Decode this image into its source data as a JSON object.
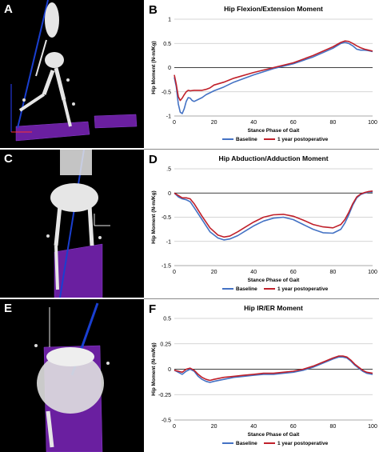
{
  "figure": {
    "image_panels": [
      {
        "letter": "A"
      },
      {
        "letter": "C"
      },
      {
        "letter": "E"
      }
    ]
  },
  "colors": {
    "baseline": "#4472c4",
    "postop": "#c0202a",
    "grid": "#c8c8c8",
    "skeleton": "#e6e6e6",
    "force_plate": "#6a1fa0",
    "force_vector": "#1a3fd0"
  },
  "chart_data": [
    {
      "letter": "B",
      "type": "line",
      "title": "Hip Flexion/Extension Moment",
      "xlabel": "Stance Phase of Gait",
      "ylabel": "Hip Moment (N-m/Kg)",
      "xlim": [
        0,
        100
      ],
      "ylim": [
        -1,
        1
      ],
      "xticks": [
        0,
        20,
        40,
        60,
        80,
        100
      ],
      "yticks": [
        1,
        0.5,
        0,
        -0.5,
        -1
      ],
      "ytick_labels": [
        "1",
        "0.5",
        "0",
        "-0.5",
        "-1"
      ],
      "grid": "horizontal",
      "legend_position": "bottom",
      "series": [
        {
          "name": "Baseline",
          "x": [
            0,
            1,
            2,
            3,
            4,
            5,
            6,
            7,
            8,
            9,
            10,
            12,
            14,
            16,
            18,
            20,
            25,
            30,
            40,
            50,
            60,
            70,
            80,
            84,
            86,
            88,
            90,
            92,
            94,
            96,
            98,
            100
          ],
          "y": [
            -0.2,
            -0.4,
            -0.75,
            -0.92,
            -0.95,
            -0.85,
            -0.7,
            -0.62,
            -0.63,
            -0.68,
            -0.7,
            -0.66,
            -0.62,
            -0.56,
            -0.52,
            -0.48,
            -0.4,
            -0.3,
            -0.15,
            -0.02,
            0.08,
            0.22,
            0.4,
            0.5,
            0.52,
            0.5,
            0.45,
            0.38,
            0.36,
            0.36,
            0.35,
            0.33
          ]
        },
        {
          "name": "1 year postoperative",
          "x": [
            0,
            1,
            2,
            3,
            4,
            5,
            6,
            7,
            8,
            10,
            12,
            14,
            16,
            18,
            20,
            25,
            30,
            40,
            50,
            60,
            70,
            80,
            84,
            86,
            88,
            90,
            92,
            94,
            96,
            98,
            100
          ],
          "y": [
            -0.15,
            -0.35,
            -0.6,
            -0.68,
            -0.63,
            -0.56,
            -0.5,
            -0.47,
            -0.48,
            -0.47,
            -0.47,
            -0.47,
            -0.45,
            -0.42,
            -0.36,
            -0.3,
            -0.22,
            -0.1,
            0.0,
            0.1,
            0.25,
            0.43,
            0.52,
            0.55,
            0.54,
            0.5,
            0.45,
            0.41,
            0.38,
            0.36,
            0.34
          ]
        }
      ]
    },
    {
      "letter": "D",
      "type": "line",
      "title": "Hip Abduction/Adduction Moment",
      "xlabel": "Stance Phase of Gait",
      "ylabel": "Hip Moment (N-m/Kg)",
      "xlim": [
        0,
        100
      ],
      "ylim": [
        -1.5,
        0.5
      ],
      "xticks": [
        0,
        20,
        40,
        60,
        80,
        100
      ],
      "yticks": [
        0.5,
        0,
        -0.5,
        -1,
        -1.5
      ],
      "ytick_labels": [
        ".5",
        "0",
        "-0.5",
        "-1",
        "-1.5"
      ],
      "grid": "horizontal",
      "legend_position": "bottom",
      "series": [
        {
          "name": "Baseline",
          "x": [
            0,
            2,
            4,
            6,
            8,
            10,
            14,
            18,
            22,
            25,
            28,
            32,
            36,
            40,
            45,
            50,
            55,
            60,
            65,
            70,
            75,
            80,
            84,
            86,
            88,
            90,
            92,
            94,
            96,
            98,
            100
          ],
          "y": [
            0,
            -0.08,
            -0.12,
            -0.14,
            -0.18,
            -0.3,
            -0.55,
            -0.8,
            -0.93,
            -0.97,
            -0.95,
            -0.88,
            -0.78,
            -0.68,
            -0.58,
            -0.52,
            -0.5,
            -0.55,
            -0.65,
            -0.75,
            -0.82,
            -0.83,
            -0.75,
            -0.62,
            -0.45,
            -0.25,
            -0.1,
            -0.03,
            0.0,
            0.02,
            0.02
          ]
        },
        {
          "name": "1 year postoperative",
          "x": [
            0,
            2,
            4,
            6,
            8,
            10,
            14,
            18,
            22,
            25,
            28,
            32,
            36,
            40,
            45,
            50,
            55,
            60,
            65,
            70,
            75,
            80,
            84,
            86,
            88,
            90,
            92,
            94,
            96,
            98,
            100
          ],
          "y": [
            0,
            -0.05,
            -0.1,
            -0.1,
            -0.12,
            -0.22,
            -0.48,
            -0.72,
            -0.87,
            -0.91,
            -0.89,
            -0.8,
            -0.7,
            -0.6,
            -0.5,
            -0.45,
            -0.44,
            -0.48,
            -0.56,
            -0.65,
            -0.7,
            -0.72,
            -0.65,
            -0.55,
            -0.4,
            -0.22,
            -0.08,
            -0.02,
            0.01,
            0.03,
            0.04
          ]
        }
      ]
    },
    {
      "letter": "F",
      "type": "line",
      "title": "Hip IR/ER Moment",
      "xlabel": "Stance Phase of Gait",
      "ylabel": "Hip Moment (N-m/Kg)",
      "xlim": [
        0,
        100
      ],
      "ylim": [
        -0.5,
        0.5
      ],
      "xticks": [
        0,
        20,
        40,
        60,
        80,
        100
      ],
      "yticks": [
        0.5,
        0.25,
        0,
        -0.25,
        -0.5
      ],
      "ytick_labels": [
        "0.5",
        "0.25",
        "0",
        "-0.25",
        "-0.5"
      ],
      "grid": "horizontal",
      "legend_position": "bottom",
      "series": [
        {
          "name": "Baseline",
          "x": [
            0,
            2,
            4,
            6,
            8,
            10,
            12,
            14,
            16,
            18,
            20,
            25,
            30,
            35,
            40,
            45,
            50,
            55,
            60,
            65,
            70,
            75,
            80,
            83,
            85,
            87,
            89,
            91,
            93,
            95,
            97,
            100
          ],
          "y": [
            -0.01,
            -0.03,
            -0.05,
            -0.02,
            0.0,
            -0.02,
            -0.07,
            -0.1,
            -0.12,
            -0.13,
            -0.12,
            -0.1,
            -0.08,
            -0.07,
            -0.06,
            -0.05,
            -0.05,
            -0.04,
            -0.03,
            -0.01,
            0.02,
            0.06,
            0.1,
            0.12,
            0.12,
            0.11,
            0.08,
            0.04,
            0.01,
            -0.02,
            -0.04,
            -0.05
          ]
        },
        {
          "name": "1 year postoperative",
          "x": [
            0,
            2,
            4,
            6,
            8,
            10,
            12,
            14,
            16,
            18,
            20,
            25,
            30,
            35,
            40,
            45,
            50,
            55,
            60,
            65,
            70,
            75,
            80,
            83,
            85,
            87,
            89,
            91,
            93,
            95,
            97,
            100
          ],
          "y": [
            -0.01,
            -0.02,
            -0.03,
            0.0,
            0.01,
            -0.01,
            -0.05,
            -0.08,
            -0.1,
            -0.11,
            -0.1,
            -0.08,
            -0.07,
            -0.06,
            -0.05,
            -0.04,
            -0.04,
            -0.03,
            -0.02,
            0.0,
            0.03,
            0.07,
            0.11,
            0.13,
            0.13,
            0.12,
            0.09,
            0.05,
            0.02,
            -0.01,
            -0.03,
            -0.04
          ]
        }
      ]
    }
  ]
}
